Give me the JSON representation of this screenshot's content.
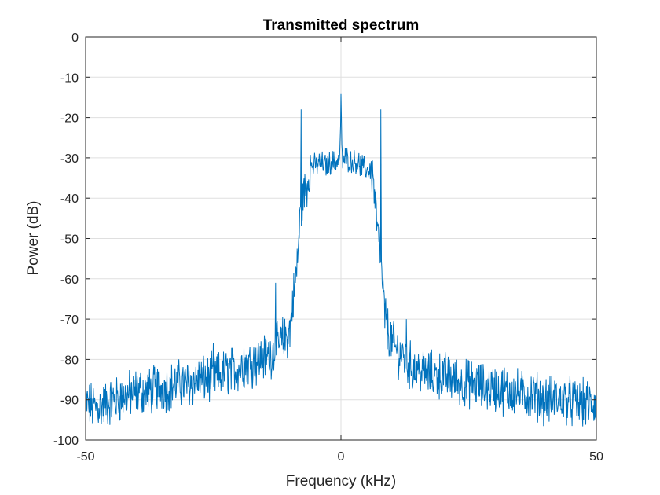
{
  "chart_data": {
    "type": "line",
    "title": "Transmitted spectrum",
    "xlabel": "Frequency (kHz)",
    "ylabel": "Power (dB)",
    "xlim": [
      -50,
      50
    ],
    "ylim": [
      -100,
      0
    ],
    "xticks": [
      -50,
      0,
      50
    ],
    "yticks": [
      0,
      -10,
      -20,
      -30,
      -40,
      -50,
      -60,
      -70,
      -80,
      -90,
      -100
    ],
    "grid": true,
    "line_color": "#0072BD",
    "series": [
      {
        "x": [
          -50,
          -48,
          -46,
          -44,
          -42,
          -40,
          -38,
          -36,
          -34,
          -32,
          -30,
          -28,
          -26,
          -24,
          -22,
          -20,
          -18,
          -16,
          -14,
          -12.5,
          -12,
          -11,
          -10,
          -9.5,
          -9,
          -8.5,
          -8,
          -7.5,
          -7,
          -6.5,
          -6.2,
          -6,
          -5,
          -4,
          -3,
          -2,
          -1,
          -0.2,
          0,
          0.2,
          1,
          2,
          3,
          4,
          5,
          6,
          6.2,
          6.5,
          7,
          7.5,
          8,
          8.5,
          9,
          9.5,
          10,
          11,
          12,
          12.5,
          13,
          14,
          16,
          18,
          20,
          22,
          24,
          26,
          28,
          30,
          32,
          34,
          36,
          38,
          40,
          42,
          44,
          46,
          48,
          50
        ],
        "y": [
          -91,
          -92,
          -91,
          -90,
          -89,
          -88,
          -88,
          -87,
          -87,
          -86,
          -86,
          -85,
          -85,
          -84,
          -83,
          -82,
          -81,
          -80,
          -79,
          -77,
          -76,
          -75,
          -73,
          -66,
          -62,
          -55,
          -45,
          -40,
          -38,
          -36,
          -33,
          -32,
          -32,
          -31,
          -32,
          -31,
          -31,
          -30,
          -14,
          -31,
          -30,
          -31,
          -31,
          -32,
          -33,
          -33,
          -34,
          -38,
          -46,
          -52,
          -60,
          -68,
          -72,
          -74,
          -76,
          -78,
          -79,
          -80,
          -81,
          -82,
          -83,
          -84,
          -84,
          -85,
          -86,
          -86,
          -87,
          -87,
          -88,
          -88,
          -89,
          -89,
          -90,
          -90,
          -90,
          -91,
          -91,
          -91
        ]
      }
    ],
    "spurs": [
      {
        "x": -7.8,
        "y": -18
      },
      {
        "x": 0,
        "y": -14
      },
      {
        "x": 7.8,
        "y": -18
      },
      {
        "x": -12.8,
        "y": -61
      },
      {
        "x": -19,
        "y": -77
      },
      {
        "x": -25,
        "y": -76
      },
      {
        "x": 12.8,
        "y": -70
      },
      {
        "x": 20,
        "y": -81
      },
      {
        "x": 25.5,
        "y": -81
      },
      {
        "x": 32,
        "y": -82
      }
    ]
  }
}
